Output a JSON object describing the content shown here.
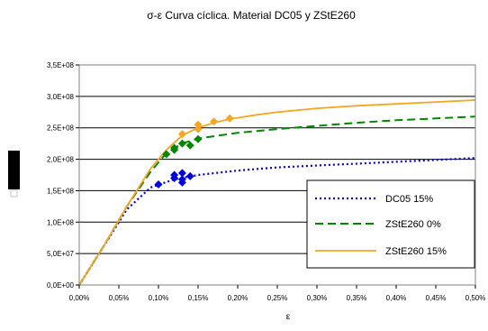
{
  "chart_data": {
    "type": "line",
    "title": "σ-ε Curva cíclica. Material DC05 y ZStE260",
    "xlabel": "ε",
    "ylabel": "",
    "xlim": [
      0,
      0.005
    ],
    "ylim": [
      0,
      350000000
    ],
    "x_ticks": [
      0,
      0.0005,
      0.001,
      0.0015,
      0.002,
      0.0025,
      0.003,
      0.0035,
      0.004,
      0.0045,
      0.005
    ],
    "x_tick_labels": [
      "0,00%",
      "0,05%",
      "0,10%",
      "0,15%",
      "0,20%",
      "0,25%",
      "0,30%",
      "0,35%",
      "0,40%",
      "0,45%",
      "0,50%"
    ],
    "y_ticks": [
      0,
      50000000,
      100000000,
      150000000,
      200000000,
      250000000,
      300000000,
      350000000
    ],
    "y_tick_labels": [
      "0,0E+00",
      "5,0E+07",
      "1,0E+08",
      "1,5E+08",
      "2,0E+08",
      "2,5E+08",
      "3,0E+08",
      "3,5E+08"
    ],
    "grid": "horizontal",
    "legend_position": "right",
    "series": [
      {
        "name": "DC05 15%",
        "color": "#0000dd",
        "dash": "dotted",
        "x": [
          0,
          0.0003,
          0.0006,
          0.0009,
          0.0012,
          0.0015,
          0.002,
          0.0025,
          0.003,
          0.0035,
          0.004,
          0.0045,
          0.005
        ],
        "y": [
          0,
          60000000,
          120000000,
          155000000,
          168000000,
          175000000,
          182000000,
          187000000,
          190000000,
          193000000,
          196000000,
          199000000,
          202000000
        ],
        "markers": {
          "x": [
            0.001,
            0.0012,
            0.0012,
            0.0013,
            0.0013,
            0.0013,
            0.0014
          ],
          "y": [
            160000000,
            170000000,
            175000000,
            178000000,
            168000000,
            163000000,
            173000000
          ]
        }
      },
      {
        "name": "ZStE260 0%",
        "color": "#008800",
        "dash": "dashed",
        "x": [
          0,
          0.0003,
          0.0006,
          0.0009,
          0.0011,
          0.0013,
          0.0015,
          0.002,
          0.0025,
          0.003,
          0.0035,
          0.004,
          0.0045,
          0.005
        ],
        "y": [
          0,
          60000000,
          125000000,
          180000000,
          210000000,
          225000000,
          233000000,
          242000000,
          248000000,
          253000000,
          258000000,
          262000000,
          265000000,
          268000000
        ],
        "markers": {
          "x": [
            0.0011,
            0.0012,
            0.0012,
            0.0013,
            0.0014,
            0.0015
          ],
          "y": [
            208000000,
            218000000,
            215000000,
            225000000,
            222000000,
            232000000
          ]
        }
      },
      {
        "name": "ZStE260 15%",
        "color": "#f5a623",
        "dash": "solid",
        "x": [
          0,
          0.0003,
          0.0006,
          0.0009,
          0.0011,
          0.0013,
          0.0015,
          0.0017,
          0.0019,
          0.0022,
          0.0025,
          0.003,
          0.0035,
          0.004,
          0.0045,
          0.005
        ],
        "y": [
          0,
          60000000,
          125000000,
          185000000,
          215000000,
          238000000,
          250000000,
          258000000,
          264000000,
          270000000,
          275000000,
          281000000,
          285000000,
          288000000,
          291000000,
          294000000
        ],
        "markers": {
          "x": [
            0.0013,
            0.0015,
            0.0015,
            0.0017,
            0.0019
          ],
          "y": [
            240000000,
            248000000,
            255000000,
            260000000,
            265000000
          ]
        }
      }
    ]
  },
  "side_marker": {
    "color": "#000000"
  }
}
